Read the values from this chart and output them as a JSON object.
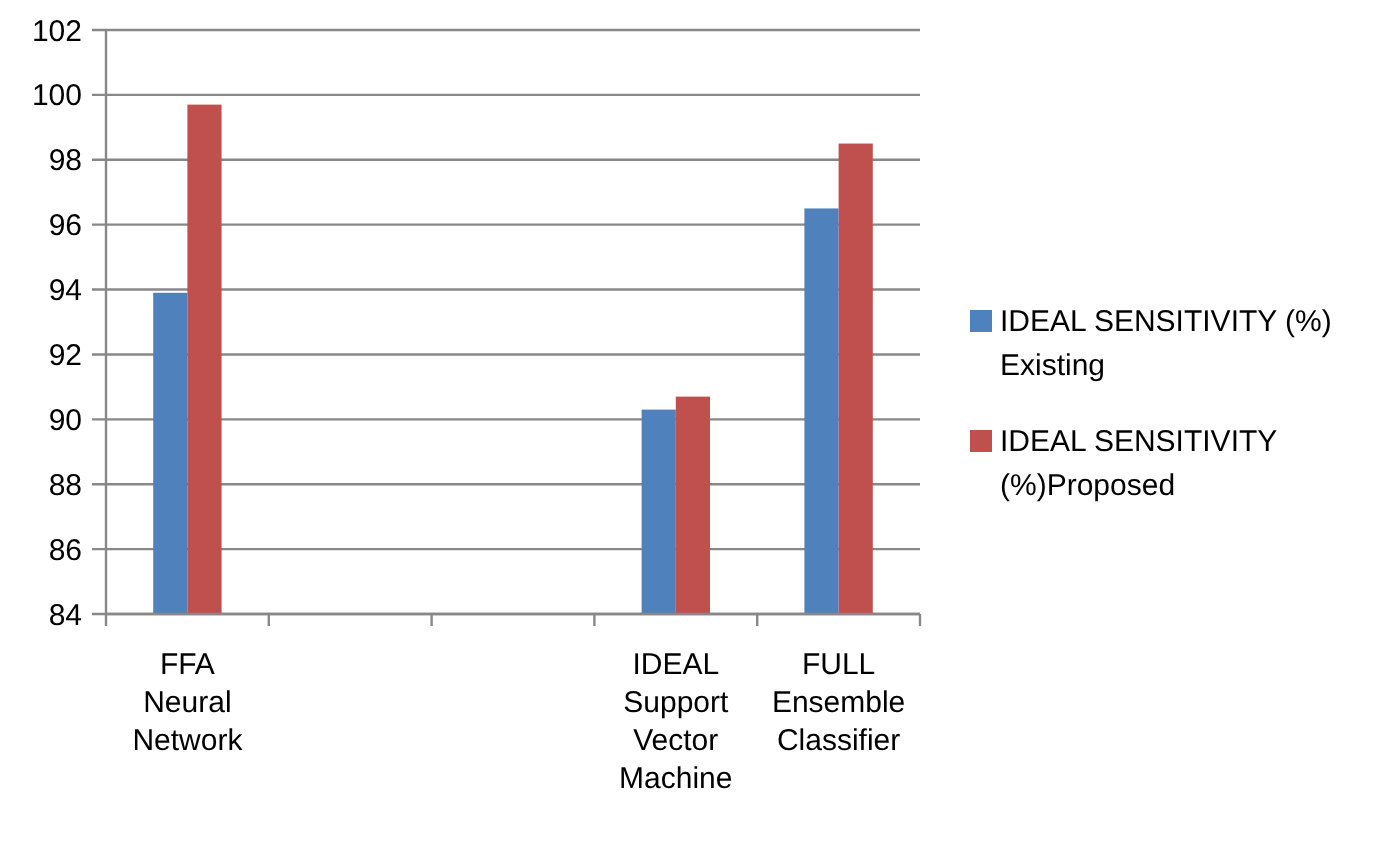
{
  "chart_data": {
    "type": "bar",
    "categories": [
      "FFA Neural Network",
      null,
      null,
      "IDEAL Support Vector Machine",
      "FULL Ensemble Classifier"
    ],
    "series": [
      {
        "name": "IDEAL SENSITIVITY (%) Existing",
        "color": "#4f81bd",
        "values": [
          93.9,
          null,
          null,
          90.3,
          96.5
        ]
      },
      {
        "name": "IDEAL SENSITIVITY (%)Proposed",
        "color": "#c0504d",
        "values": [
          99.7,
          null,
          null,
          90.7,
          98.5
        ]
      }
    ],
    "ylim": [
      84,
      102
    ],
    "yticks": [
      84,
      86,
      88,
      90,
      92,
      94,
      96,
      98,
      100,
      102
    ],
    "grid": "y",
    "legend": "right"
  }
}
